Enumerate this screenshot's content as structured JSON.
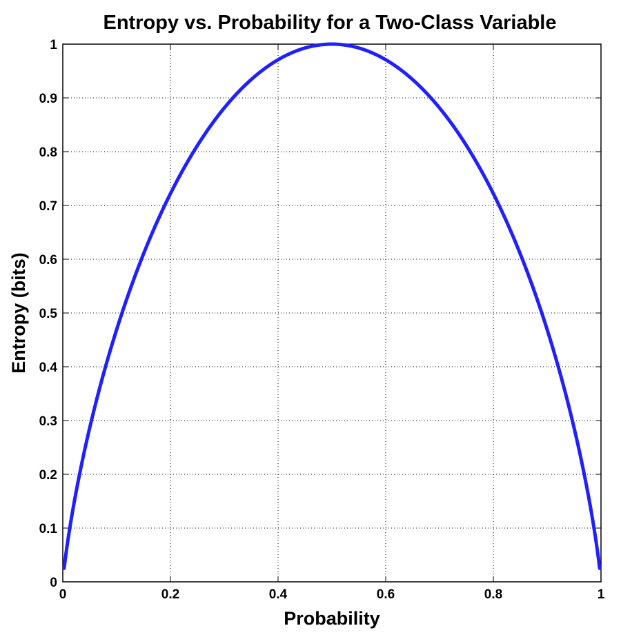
{
  "chart_data": {
    "type": "line",
    "title": "Entropy vs. Probability for a Two-Class Variable",
    "xlabel": "Probability",
    "ylabel": "Entropy (bits)",
    "xlim": [
      0,
      1
    ],
    "ylim": [
      0,
      1
    ],
    "grid": true,
    "x_ticks": [
      0,
      0.2,
      0.4,
      0.6,
      0.8,
      1
    ],
    "x_tick_labels": [
      "0",
      "0.2",
      "0.4",
      "0.6",
      "0.8",
      "1"
    ],
    "y_ticks": [
      0,
      0.1,
      0.2,
      0.3,
      0.4,
      0.5,
      0.6,
      0.7,
      0.8,
      0.9,
      1
    ],
    "y_tick_labels": [
      "0",
      "0.1",
      "0.2",
      "0.3",
      "0.4",
      "0.5",
      "0.6",
      "0.7",
      "0.8",
      "0.9",
      "1"
    ],
    "series": [
      {
        "color": "#2020ff",
        "x": [
          0.005,
          0.01,
          0.02,
          0.03,
          0.05,
          0.075,
          0.1,
          0.15,
          0.2,
          0.25,
          0.3,
          0.35,
          0.4,
          0.45,
          0.5,
          0.55,
          0.6,
          0.65,
          0.7,
          0.75,
          0.8,
          0.85,
          0.9,
          0.925,
          0.95,
          0.97,
          0.98,
          0.99,
          0.995
        ],
        "y": [
          0.045,
          0.081,
          0.141,
          0.194,
          0.286,
          0.384,
          0.469,
          0.61,
          0.722,
          0.811,
          0.881,
          0.934,
          0.971,
          0.993,
          1.0,
          0.993,
          0.971,
          0.934,
          0.881,
          0.811,
          0.722,
          0.61,
          0.469,
          0.384,
          0.286,
          0.194,
          0.141,
          0.081,
          0.045
        ]
      }
    ]
  }
}
